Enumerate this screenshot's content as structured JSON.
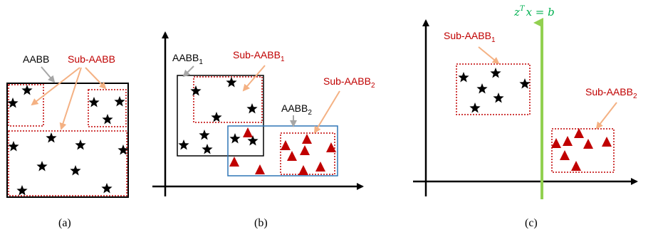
{
  "colors": {
    "black": "#000000",
    "red": "#c00000",
    "dotted_red": "#c00000",
    "blue": "#2e75b6",
    "green": "#92d050",
    "eq_green": "#00b050",
    "arrow_orange": "#f4b183",
    "arrow_gray": "#a6a6a6"
  },
  "panel_a": {
    "caption": "(a)",
    "aabb_label": "AABB",
    "sub_aabb_label": "Sub-AABB"
  },
  "panel_b": {
    "caption": "(b)",
    "aabb1_label": "AABB",
    "aabb1_sub": "1",
    "sub_aabb1_label": "Sub-AABB",
    "sub_aabb1_sub": "1",
    "aabb2_label": "AABB",
    "aabb2_sub": "2",
    "sub_aabb2_label": "Sub-AABB",
    "sub_aabb2_sub": "2"
  },
  "panel_c": {
    "caption": "(c)",
    "sub_aabb1_label": "Sub-AABB",
    "sub_aabb1_sub": "1",
    "sub_aabb2_label": "Sub-AABB",
    "sub_aabb2_sub": "2",
    "equation_z": "z",
    "equation_T": "T",
    "equation_rest": "x = b"
  }
}
